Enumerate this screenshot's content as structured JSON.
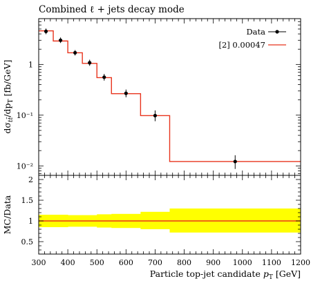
{
  "chart_data": [
    {
      "type": "line",
      "title": "Combined ℓ + jets decay mode",
      "ylabel": "dσ_tt̄/dp_T [fb/GeV]",
      "xlabel": "",
      "yscale": "log",
      "xlim": [
        300,
        1200
      ],
      "ylim": [
        0.0065,
        8
      ],
      "grid": false,
      "legend_position": "top-right",
      "y_tick_labels": [
        "10⁻²",
        "10⁻¹",
        "1"
      ],
      "y_ticks": [
        0.01,
        0.1,
        1
      ],
      "series": [
        {
          "name": "Data",
          "style": "points-with-errorbars",
          "color": "#000000",
          "x": [
            325,
            375,
            425,
            475,
            525,
            600,
            700,
            975
          ],
          "y": [
            4.5,
            3.0,
            1.7,
            1.08,
            0.56,
            0.27,
            0.098,
            0.0122
          ],
          "y_err_low": [
            0.55,
            0.35,
            0.2,
            0.14,
            0.08,
            0.045,
            0.022,
            0.0035
          ],
          "y_err_high": [
            0.6,
            0.4,
            0.22,
            0.16,
            0.09,
            0.05,
            0.026,
            0.004
          ],
          "x_err": [
            25,
            25,
            25,
            25,
            25,
            50,
            50,
            225
          ]
        },
        {
          "name": "[2] 0.00047",
          "style": "step",
          "color": "#e8331c",
          "bin_edges": [
            300,
            350,
            400,
            450,
            500,
            550,
            650,
            750,
            1200
          ],
          "values": [
            4.6,
            2.9,
            1.7,
            1.05,
            0.55,
            0.265,
            0.098,
            0.0122
          ]
        }
      ]
    },
    {
      "type": "area",
      "title": "",
      "ylabel": "MC/Data",
      "xlabel": "Particle top-jet candidate p_T [GeV]",
      "xlim": [
        300,
        1200
      ],
      "ylim": [
        0.2,
        2.1
      ],
      "y_ticks": [
        0.5,
        1,
        1.5,
        2
      ],
      "y_tick_labels": [
        "0.5",
        "1",
        "1.5",
        "2"
      ],
      "x_ticks": [
        300,
        400,
        500,
        600,
        700,
        800,
        900,
        1000,
        1100,
        1200
      ],
      "x_tick_labels": [
        "300",
        "400",
        "500",
        "600",
        "700",
        "800",
        "900",
        "1000",
        "1100",
        "1200"
      ],
      "series": [
        {
          "style": "band",
          "color": "#ffff00",
          "bin_edges": [
            300,
            350,
            400,
            450,
            500,
            550,
            650,
            750,
            1200
          ],
          "low": [
            0.85,
            0.85,
            0.86,
            0.86,
            0.84,
            0.83,
            0.8,
            0.72
          ],
          "high": [
            1.15,
            1.15,
            1.14,
            1.14,
            1.16,
            1.17,
            1.22,
            1.3
          ]
        },
        {
          "style": "step",
          "color": "#e8331c",
          "bin_edges": [
            300,
            350,
            400,
            450,
            500,
            550,
            650,
            750,
            1200
          ],
          "values": [
            1,
            1,
            1,
            1,
            1,
            1,
            1,
            1
          ]
        }
      ]
    }
  ]
}
